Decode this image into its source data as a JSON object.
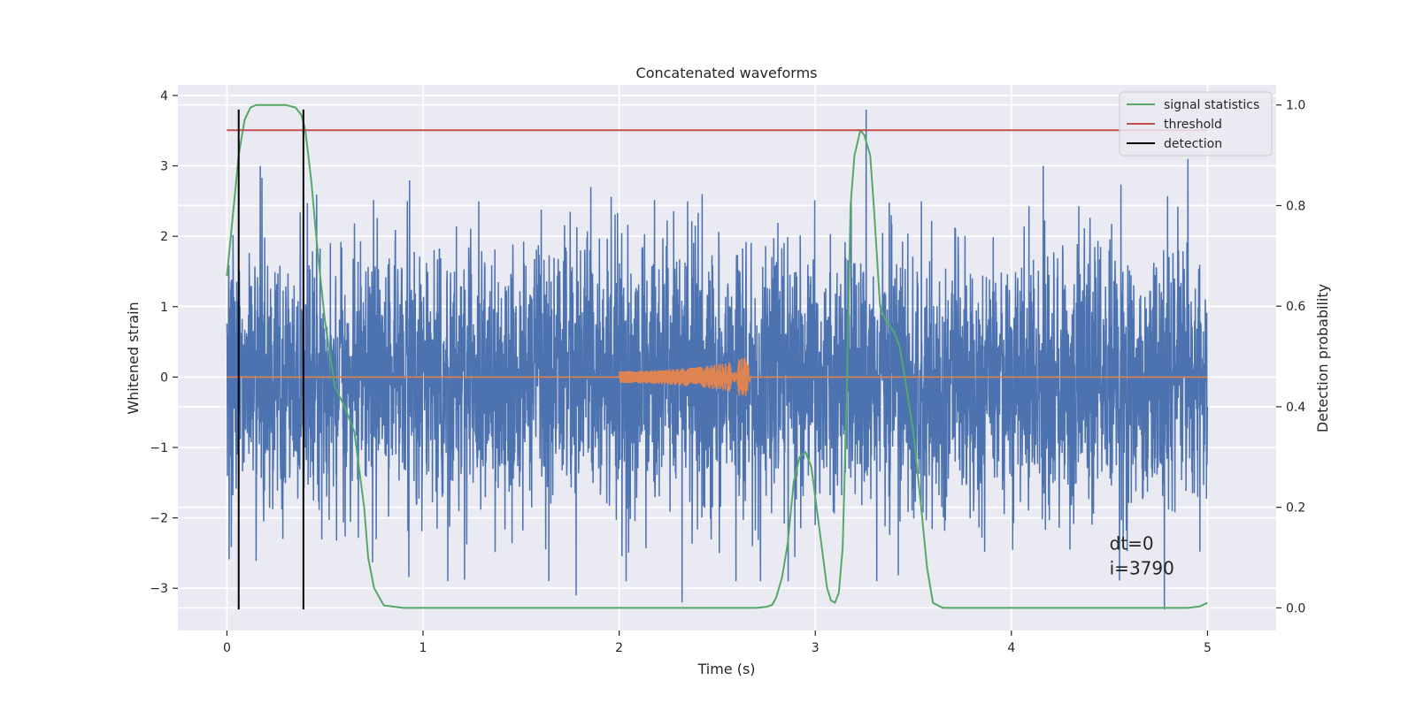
{
  "chart_data": {
    "type": "line",
    "title": "Concatenated waveforms",
    "xlabel": "Time (s)",
    "ylabel": "Whitened strain",
    "y2label": "Detection probability",
    "xlim": [
      -0.25,
      5.35
    ],
    "ylim": [
      -3.6,
      4.15
    ],
    "y2lim": [
      -0.045,
      1.04
    ],
    "x_ticks": [
      0,
      1,
      2,
      3,
      4,
      5
    ],
    "x_tick_labels": [
      "0",
      "1",
      "2",
      "3",
      "4",
      "5"
    ],
    "y_ticks": [
      4,
      3,
      2,
      1,
      0,
      -1,
      -2,
      -3
    ],
    "y_tick_labels": [
      "4",
      "3",
      "2",
      "1",
      "0",
      "−1",
      "−2",
      "−3"
    ],
    "y2_ticks": [
      1.0,
      0.8,
      0.6,
      0.4,
      0.2,
      0.0
    ],
    "y2_tick_labels": [
      "1.0",
      "0.8",
      "0.6",
      "0.4",
      "0.2",
      "0.0"
    ],
    "grid": true,
    "legend_position": "top-right",
    "legend": [
      "signal statistics",
      "threshold",
      "detection"
    ],
    "series": [
      {
        "name": "",
        "axis": "left",
        "color": "#4c72b0",
        "description": "whitened noisy strain, dense noise roughly between -3 and 3",
        "x_range": [
          0,
          5
        ],
        "samples": 4000,
        "envelope": [
          -2.9,
          3.0
        ],
        "notable_peaks": [
          [
            0.17,
            3.0
          ],
          [
            0.92,
            2.5
          ],
          [
            1.78,
            -3.1
          ],
          [
            2.32,
            -3.2
          ],
          [
            3.26,
            3.8
          ],
          [
            4.78,
            -3.3
          ],
          [
            4.9,
            3.1
          ]
        ]
      },
      {
        "name": "",
        "axis": "left",
        "color": "#dd8452",
        "description": "injected chirp waveform",
        "x": [
          0,
          2.0,
          2.2,
          2.4,
          2.55,
          2.65,
          2.67,
          5.0
        ],
        "amplitude": [
          0,
          0.08,
          0.1,
          0.14,
          0.2,
          0.3,
          0,
          0
        ]
      },
      {
        "name": "signal statistics",
        "axis": "right",
        "color": "#55a868",
        "x": [
          0.0,
          0.03,
          0.06,
          0.09,
          0.12,
          0.15,
          0.2,
          0.3,
          0.35,
          0.38,
          0.4,
          0.43,
          0.46,
          0.5,
          0.55,
          0.6,
          0.65,
          0.7,
          0.72,
          0.75,
          0.8,
          0.9,
          1.5,
          2.0,
          2.5,
          2.7,
          2.75,
          2.78,
          2.8,
          2.83,
          2.86,
          2.89,
          2.92,
          2.95,
          2.98,
          3.0,
          3.03,
          3.06,
          3.08,
          3.1,
          3.12,
          3.14,
          3.16,
          3.18,
          3.2,
          3.23,
          3.25,
          3.28,
          3.3,
          3.33,
          3.36,
          3.4,
          3.43,
          3.46,
          3.5,
          3.54,
          3.57,
          3.6,
          3.65,
          4.0,
          4.9,
          4.96,
          5.0
        ],
        "y": [
          0.66,
          0.78,
          0.9,
          0.97,
          0.995,
          1.0,
          1.0,
          1.0,
          0.995,
          0.98,
          0.95,
          0.85,
          0.72,
          0.57,
          0.44,
          0.4,
          0.35,
          0.2,
          0.1,
          0.04,
          0.005,
          0.0,
          0.0,
          0.0,
          0.0,
          0.0,
          0.002,
          0.006,
          0.02,
          0.06,
          0.13,
          0.25,
          0.3,
          0.31,
          0.28,
          0.22,
          0.13,
          0.04,
          0.015,
          0.01,
          0.03,
          0.12,
          0.42,
          0.8,
          0.9,
          0.95,
          0.94,
          0.9,
          0.79,
          0.6,
          0.57,
          0.55,
          0.52,
          0.45,
          0.35,
          0.2,
          0.08,
          0.01,
          0.0,
          0.0,
          0.0,
          0.003,
          0.01
        ]
      },
      {
        "name": "threshold",
        "axis": "right",
        "color": "#c44e52",
        "x": [
          0,
          5
        ],
        "y": [
          0.95,
          0.95
        ]
      },
      {
        "name": "detection",
        "axis": "left",
        "color": "#000000",
        "type": "vlines",
        "x": [
          0.06,
          0.39
        ],
        "ymin": -3.3,
        "ymax": 3.8
      }
    ],
    "annotations": [
      {
        "text": "dt=0",
        "x": 4.5,
        "y": -2.45
      },
      {
        "text": "i=3790",
        "x": 4.5,
        "y": -2.8
      }
    ]
  }
}
